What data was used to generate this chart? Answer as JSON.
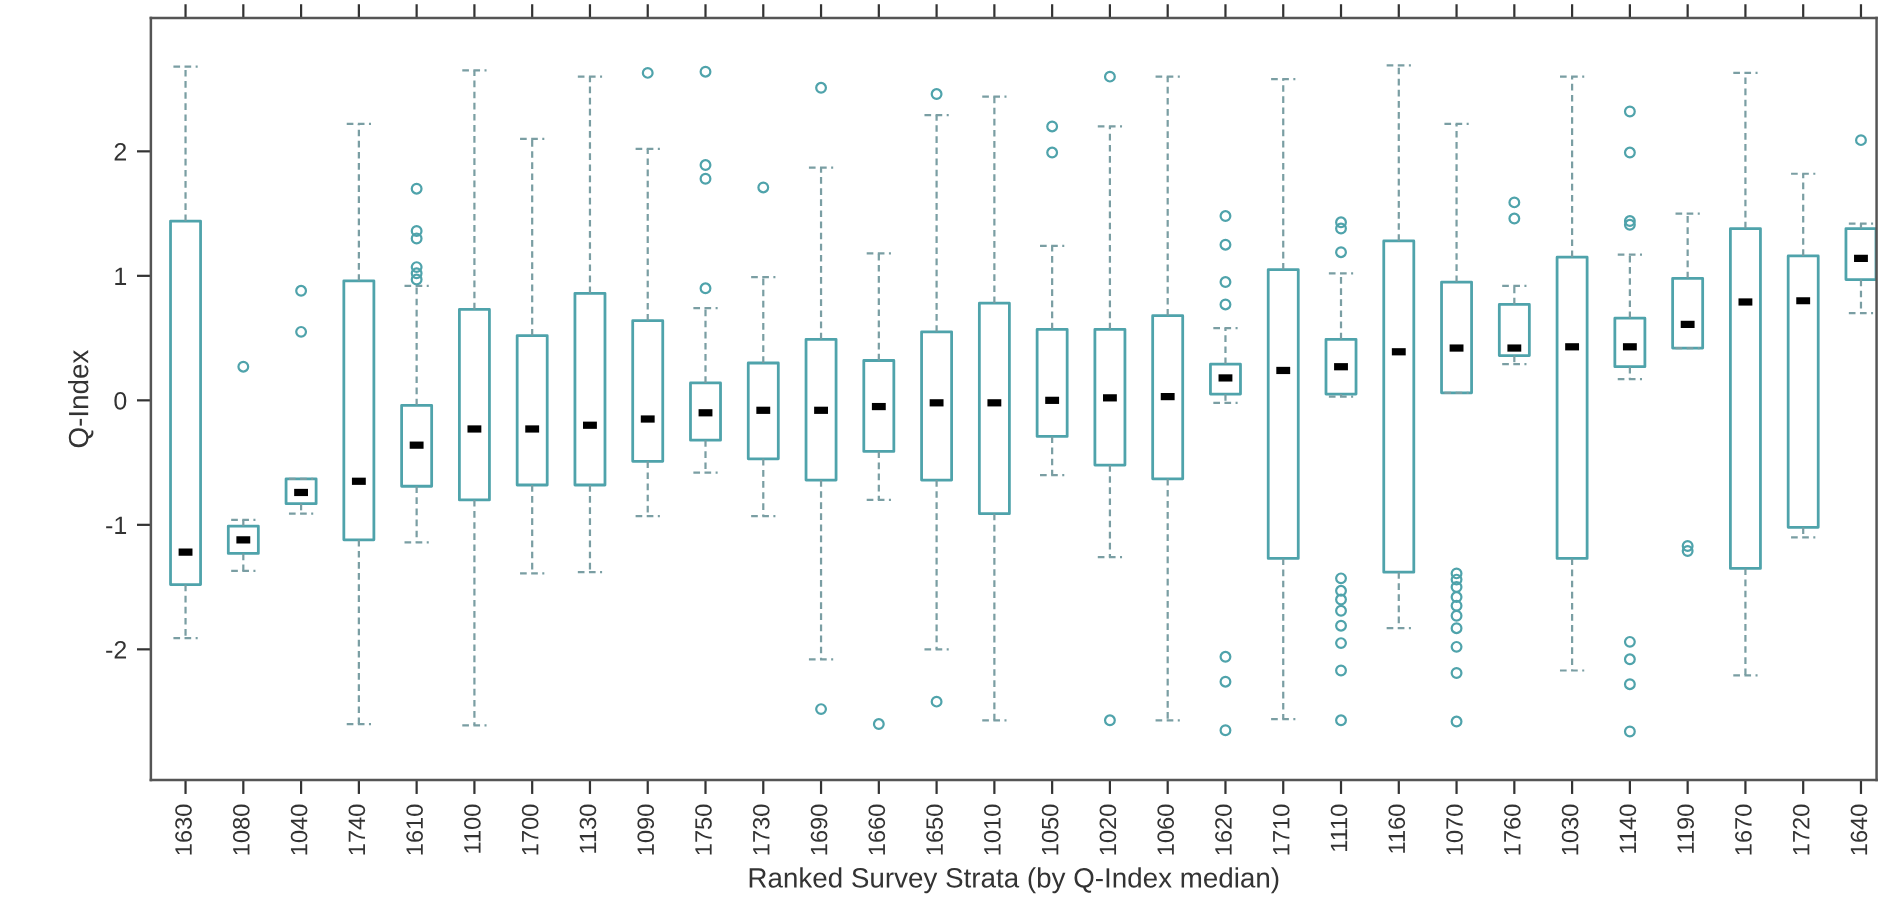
{
  "chart_data": {
    "type": "box",
    "xlabel": "Ranked Survey Strata (by Q-Index median)",
    "ylabel": "Q-Index",
    "categories": [
      "1630",
      "1080",
      "1040",
      "1740",
      "1610",
      "1100",
      "1700",
      "1130",
      "1090",
      "1750",
      "1730",
      "1690",
      "1660",
      "1650",
      "1010",
      "1050",
      "1020",
      "1060",
      "1620",
      "1710",
      "1110",
      "1160",
      "1070",
      "1760",
      "1030",
      "1140",
      "1190",
      "1670",
      "1720",
      "1640"
    ],
    "ylim": [
      -3.05,
      3.07
    ],
    "yticks": [
      -2,
      -1,
      0,
      1,
      2
    ],
    "grid": false,
    "series": [
      {
        "color": "#4fa3ab",
        "boxes": [
          {
            "low": -1.91,
            "q1": -1.48,
            "median": -1.22,
            "q3": 1.44,
            "high": 2.68
          },
          {
            "low": -1.37,
            "q1": -1.23,
            "median": -1.12,
            "q3": -1.01,
            "high": -0.96,
            "outliers": [
              0.27
            ]
          },
          {
            "low": -0.91,
            "q1": -0.83,
            "median": -0.74,
            "q3": -0.63,
            "high": -0.63,
            "outliers": [
              0.88,
              0.55
            ]
          },
          {
            "low": -2.6,
            "q1": -1.12,
            "median": -0.65,
            "q3": 0.96,
            "high": 2.22
          },
          {
            "low": -1.14,
            "q1": -0.69,
            "median": -0.36,
            "q3": -0.04,
            "high": 0.92,
            "outliers": [
              1.7,
              1.36,
              1.3,
              1.07,
              1.02,
              0.97
            ]
          },
          {
            "low": -2.61,
            "q1": -0.8,
            "median": -0.23,
            "q3": 0.73,
            "high": 2.65
          },
          {
            "low": -1.39,
            "q1": -0.68,
            "median": -0.23,
            "q3": 0.52,
            "high": 2.1
          },
          {
            "low": -1.38,
            "q1": -0.68,
            "median": -0.2,
            "q3": 0.86,
            "high": 2.6
          },
          {
            "low": -0.93,
            "q1": -0.49,
            "median": -0.15,
            "q3": 0.64,
            "high": 2.02,
            "outliers": [
              2.63
            ]
          },
          {
            "low": -0.58,
            "q1": -0.32,
            "median": -0.1,
            "q3": 0.14,
            "high": 0.74,
            "outliers": [
              2.64,
              1.89,
              1.78,
              0.9
            ]
          },
          {
            "low": -0.93,
            "q1": -0.47,
            "median": -0.08,
            "q3": 0.3,
            "high": 0.99,
            "outliers": [
              1.71
            ]
          },
          {
            "low": -2.08,
            "q1": -0.64,
            "median": -0.08,
            "q3": 0.49,
            "high": 1.87,
            "outliers": [
              2.51,
              -2.48
            ]
          },
          {
            "low": -0.8,
            "q1": -0.41,
            "median": -0.05,
            "q3": 0.32,
            "high": 1.18,
            "outliers": [
              -2.6
            ]
          },
          {
            "low": -2.0,
            "q1": -0.64,
            "median": -0.02,
            "q3": 0.55,
            "high": 2.29,
            "outliers": [
              2.46,
              -2.42
            ]
          },
          {
            "low": -2.57,
            "q1": -0.91,
            "median": -0.02,
            "q3": 0.78,
            "high": 2.44
          },
          {
            "low": -0.6,
            "q1": -0.29,
            "median": 0.0,
            "q3": 0.57,
            "high": 1.24,
            "outliers": [
              2.2,
              1.99
            ]
          },
          {
            "low": -1.26,
            "q1": -0.52,
            "median": 0.02,
            "q3": 0.57,
            "high": 2.2,
            "outliers": [
              2.6,
              -2.57
            ]
          },
          {
            "low": -2.57,
            "q1": -0.63,
            "median": 0.03,
            "q3": 0.68,
            "high": 2.6
          },
          {
            "low": -0.02,
            "q1": 0.05,
            "median": 0.18,
            "q3": 0.29,
            "high": 0.58,
            "outliers": [
              1.48,
              1.25,
              0.95,
              0.77,
              -2.06,
              -2.26,
              -2.65
            ]
          },
          {
            "low": -2.56,
            "q1": -1.27,
            "median": 0.24,
            "q3": 1.05,
            "high": 2.58
          },
          {
            "low": 0.03,
            "q1": 0.05,
            "median": 0.27,
            "q3": 0.49,
            "high": 1.02,
            "outliers": [
              1.43,
              1.38,
              1.19,
              -1.43,
              -1.53,
              -1.6,
              -1.69,
              -1.81,
              -1.95,
              -2.17,
              -2.57
            ]
          },
          {
            "low": -1.83,
            "q1": -1.38,
            "median": 0.39,
            "q3": 1.28,
            "high": 2.69
          },
          {
            "low": 0.06,
            "q1": 0.06,
            "median": 0.42,
            "q3": 0.95,
            "high": 2.22,
            "outliers": [
              -1.39,
              -1.44,
              -1.5,
              -1.58,
              -1.65,
              -1.73,
              -1.83,
              -1.98,
              -2.19,
              -2.58
            ]
          },
          {
            "low": 0.29,
            "q1": 0.36,
            "median": 0.42,
            "q3": 0.77,
            "high": 0.92,
            "outliers": [
              1.59,
              1.46
            ]
          },
          {
            "low": -2.17,
            "q1": -1.27,
            "median": 0.43,
            "q3": 1.15,
            "high": 2.6
          },
          {
            "low": 0.17,
            "q1": 0.27,
            "median": 0.43,
            "q3": 0.66,
            "high": 1.17,
            "outliers": [
              2.32,
              1.99,
              1.44,
              1.41,
              -1.94,
              -2.08,
              -2.28,
              -2.66
            ]
          },
          {
            "low": 0.42,
            "q1": 0.42,
            "median": 0.61,
            "q3": 0.98,
            "high": 1.5,
            "outliers": [
              -1.17,
              -1.21
            ]
          },
          {
            "low": -2.21,
            "q1": -1.35,
            "median": 0.79,
            "q3": 1.38,
            "high": 2.63
          },
          {
            "low": -1.1,
            "q1": -1.02,
            "median": 0.8,
            "q3": 1.16,
            "high": 1.82
          },
          {
            "low": 0.7,
            "q1": 0.97,
            "median": 1.14,
            "q3": 1.38,
            "high": 1.42,
            "outliers": [
              2.09
            ]
          }
        ]
      }
    ]
  }
}
